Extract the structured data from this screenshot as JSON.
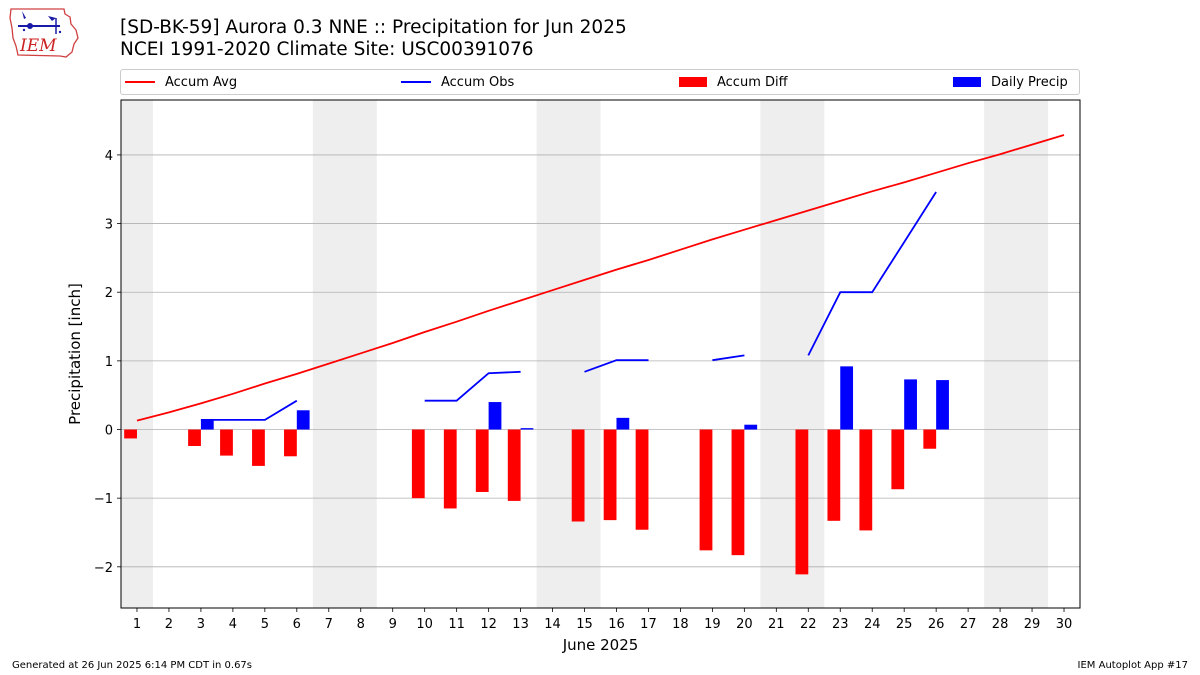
{
  "header": {
    "title_line1": "[SD-BK-59] Aurora 0.3 NNE :: Precipitation for Jun 2025",
    "title_line2": "NCEI 1991-2020 Climate Site: USC00391076"
  },
  "logo": {
    "text": "IEM"
  },
  "footer": {
    "left": "Generated at 26 Jun 2025 6:14 PM CDT in 0.67s",
    "right": "IEM Autoplot App #17"
  },
  "colors": {
    "avg": "#ff0000",
    "obs": "#0000ff",
    "diff": "#ff0000",
    "daily": "#0000ff",
    "weekend": "#eeeeee",
    "grid": "#b0b0b0"
  },
  "chart_data": {
    "type": "bar",
    "title": "[SD-BK-59] Aurora 0.3 NNE :: Precipitation for Jun 2025",
    "xlabel": "June 2025",
    "ylabel": "Precipitation [inch]",
    "xlim": [
      0.5,
      30.5
    ],
    "ylim": [
      -2.6,
      4.8
    ],
    "grid": "horizontal",
    "legend_placement": "top",
    "legend": [
      "Accum Avg",
      "Accum Obs",
      "Accum Diff",
      "Daily Precip"
    ],
    "x": [
      1,
      2,
      3,
      4,
      5,
      6,
      7,
      8,
      9,
      10,
      11,
      12,
      13,
      14,
      15,
      16,
      17,
      18,
      19,
      20,
      21,
      22,
      23,
      24,
      25,
      26,
      27,
      28,
      29,
      30
    ],
    "x_ticks": [
      "1",
      "2",
      "3",
      "4",
      "5",
      "6",
      "7",
      "8",
      "9",
      "10",
      "11",
      "12",
      "13",
      "14",
      "15",
      "16",
      "17",
      "18",
      "19",
      "20",
      "21",
      "22",
      "23",
      "24",
      "25",
      "26",
      "27",
      "28",
      "29",
      "30"
    ],
    "y_ticks": [
      -2,
      -1,
      0,
      1,
      2,
      3,
      4
    ],
    "y_tick_labels": [
      "−2",
      "−1",
      "0",
      "1",
      "2",
      "3",
      "4"
    ],
    "weekend_spans": [
      [
        0.5,
        1.5
      ],
      [
        6.5,
        8.5
      ],
      [
        13.5,
        15.5
      ],
      [
        20.5,
        22.5
      ],
      [
        27.5,
        29.5
      ]
    ],
    "series": [
      {
        "name": "Accum Avg",
        "kind": "line",
        "values": [
          0.13,
          0.25,
          0.38,
          0.52,
          0.67,
          0.81,
          0.96,
          1.11,
          1.26,
          1.42,
          1.57,
          1.73,
          1.88,
          2.03,
          2.18,
          2.33,
          2.47,
          2.62,
          2.77,
          2.91,
          3.05,
          3.19,
          3.33,
          3.47,
          3.6,
          3.74,
          3.88,
          4.01,
          4.15,
          4.29
        ]
      },
      {
        "name": "Accum Obs",
        "kind": "line",
        "values": [
          null,
          null,
          0.14,
          0.14,
          0.14,
          0.42,
          null,
          null,
          null,
          0.42,
          0.42,
          0.82,
          0.84,
          null,
          0.84,
          1.01,
          1.01,
          null,
          1.01,
          1.08,
          null,
          1.08,
          2.0,
          2.0,
          2.73,
          3.46,
          null,
          null,
          null,
          null
        ]
      },
      {
        "name": "Accum Diff",
        "kind": "bar",
        "values": [
          -0.13,
          null,
          -0.24,
          -0.38,
          -0.53,
          -0.39,
          null,
          null,
          null,
          -1.0,
          -1.15,
          -0.91,
          -1.04,
          null,
          -1.34,
          -1.32,
          -1.46,
          null,
          -1.76,
          -1.83,
          null,
          -2.11,
          -1.33,
          -1.47,
          -0.87,
          -0.28,
          null,
          null,
          null,
          null
        ]
      },
      {
        "name": "Daily Precip",
        "kind": "bar",
        "values": [
          null,
          null,
          0.14,
          null,
          null,
          0.28,
          null,
          null,
          null,
          null,
          null,
          0.4,
          0.02,
          null,
          null,
          0.17,
          null,
          null,
          null,
          0.07,
          null,
          null,
          0.92,
          null,
          0.73,
          0.72,
          null,
          null,
          null,
          null
        ]
      }
    ]
  }
}
